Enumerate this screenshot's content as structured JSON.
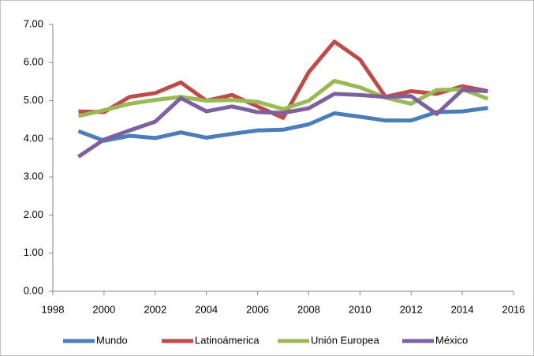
{
  "chart_data": {
    "type": "line",
    "x": [
      1999,
      2000,
      2001,
      2002,
      2003,
      2004,
      2005,
      2006,
      2007,
      2008,
      2009,
      2010,
      2011,
      2012,
      2013,
      2014,
      2015
    ],
    "series": [
      {
        "name": "Mundo",
        "color": "#4a7ebb",
        "values": [
          4.2,
          3.95,
          4.08,
          4.02,
          4.17,
          4.03,
          4.13,
          4.22,
          4.24,
          4.38,
          4.67,
          4.58,
          4.48,
          4.48,
          4.7,
          4.72,
          4.81
        ]
      },
      {
        "name": "Latinoámerica",
        "color": "#be4b48",
        "values": [
          4.72,
          4.7,
          5.1,
          5.2,
          5.48,
          5.0,
          5.15,
          4.85,
          4.55,
          5.75,
          6.55,
          6.08,
          5.1,
          5.25,
          5.18,
          5.38,
          5.25
        ]
      },
      {
        "name": "Unión Europea",
        "color": "#98b954",
        "values": [
          4.6,
          4.75,
          4.92,
          5.02,
          5.1,
          5.0,
          5.02,
          4.97,
          4.78,
          5.0,
          5.52,
          5.35,
          5.08,
          4.92,
          5.28,
          5.3,
          5.05
        ]
      },
      {
        "name": "México",
        "color": "#7d60a0",
        "values": [
          3.53,
          3.98,
          4.22,
          4.45,
          5.07,
          4.72,
          4.85,
          4.7,
          4.68,
          4.8,
          5.18,
          5.15,
          5.1,
          5.12,
          4.65,
          5.28,
          5.25
        ]
      }
    ],
    "xlim": [
      1998,
      2016
    ],
    "xticks": [
      1998,
      2000,
      2002,
      2004,
      2006,
      2008,
      2010,
      2012,
      2014,
      2016
    ],
    "ylim": [
      0,
      7
    ],
    "yticks": [
      {
        "value": 0,
        "label": "0.00"
      },
      {
        "value": 1,
        "label": "1.00"
      },
      {
        "value": 2,
        "label": "2.00"
      },
      {
        "value": 3,
        "label": "3.00"
      },
      {
        "value": 4,
        "label": "4.00"
      },
      {
        "value": 5,
        "label": "5.00"
      },
      {
        "value": 6,
        "label": "6.00"
      },
      {
        "value": 7,
        "label": "7.00"
      }
    ],
    "grid": false,
    "legend": "bottom"
  }
}
